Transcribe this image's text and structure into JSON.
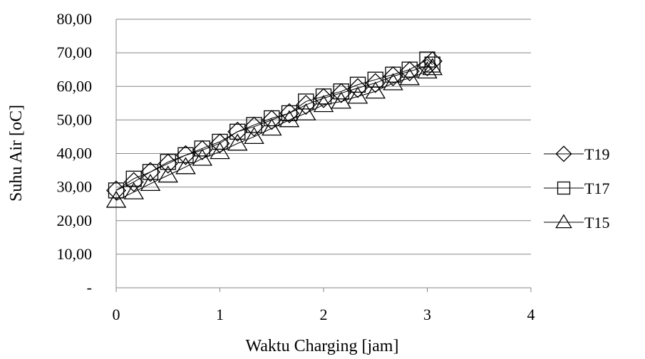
{
  "chart_data": {
    "type": "line",
    "xlabel": "Waktu Charging [jam]",
    "ylabel": "Suhu Air [oC]",
    "xlim": [
      0,
      4
    ],
    "ylim": [
      0,
      80
    ],
    "x_ticks": [
      {
        "value": 0,
        "label": "0"
      },
      {
        "value": 1,
        "label": "1"
      },
      {
        "value": 2,
        "label": "2"
      },
      {
        "value": 3,
        "label": "3"
      },
      {
        "value": 4,
        "label": "4"
      }
    ],
    "y_ticks": [
      {
        "value": 0,
        "label": "-"
      },
      {
        "value": 10,
        "label": "10,00"
      },
      {
        "value": 20,
        "label": "20,00"
      },
      {
        "value": 30,
        "label": "30,00"
      },
      {
        "value": 40,
        "label": "40,00"
      },
      {
        "value": 50,
        "label": "50,00"
      },
      {
        "value": 60,
        "label": "60,00"
      },
      {
        "value": 70,
        "label": "70,00"
      },
      {
        "value": 80,
        "label": "80,00"
      }
    ],
    "grid": "horizontal",
    "legend_position": "right",
    "series": [
      {
        "name": "T19",
        "marker": "diamond",
        "color": "#000000",
        "x": [
          0,
          0.17,
          0.33,
          0.5,
          0.67,
          0.83,
          1.0,
          1.17,
          1.33,
          1.5,
          1.67,
          1.83,
          2.0,
          2.17,
          2.33,
          2.5,
          2.67,
          2.83,
          3.0,
          3.05
        ],
        "y": [
          29.0,
          31.5,
          34.5,
          37.0,
          39.5,
          41.0,
          43.0,
          46.5,
          48.0,
          50.0,
          52.0,
          54.5,
          56.5,
          58.0,
          59.5,
          61.0,
          63.0,
          64.5,
          66.0,
          67.5
        ]
      },
      {
        "name": "T17",
        "marker": "square",
        "color": "#000000",
        "x": [
          0,
          0.17,
          0.33,
          0.5,
          0.67,
          0.83,
          1.0,
          1.17,
          1.33,
          1.5,
          1.67,
          1.83,
          2.0,
          2.17,
          2.33,
          2.5,
          2.67,
          2.83,
          3.0,
          3.05
        ],
        "y": [
          29.0,
          32.5,
          34.5,
          37.5,
          39.5,
          41.5,
          43.5,
          46.5,
          48.5,
          50.5,
          52.0,
          55.5,
          57.0,
          58.5,
          60.5,
          62.0,
          63.5,
          65.0,
          68.0,
          66.5
        ]
      },
      {
        "name": "T15",
        "marker": "triangle",
        "color": "#000000",
        "x": [
          0,
          0.17,
          0.33,
          0.5,
          0.67,
          0.83,
          1.0,
          1.17,
          1.33,
          1.5,
          1.67,
          1.83,
          2.0,
          2.17,
          2.33,
          2.5,
          2.67,
          2.83,
          3.0,
          3.05
        ],
        "y": [
          26.0,
          28.5,
          31.0,
          33.5,
          36.0,
          38.5,
          40.5,
          43.0,
          45.0,
          47.5,
          50.0,
          52.0,
          54.5,
          55.5,
          57.0,
          58.5,
          61.0,
          62.5,
          64.5,
          65.5
        ]
      }
    ]
  }
}
